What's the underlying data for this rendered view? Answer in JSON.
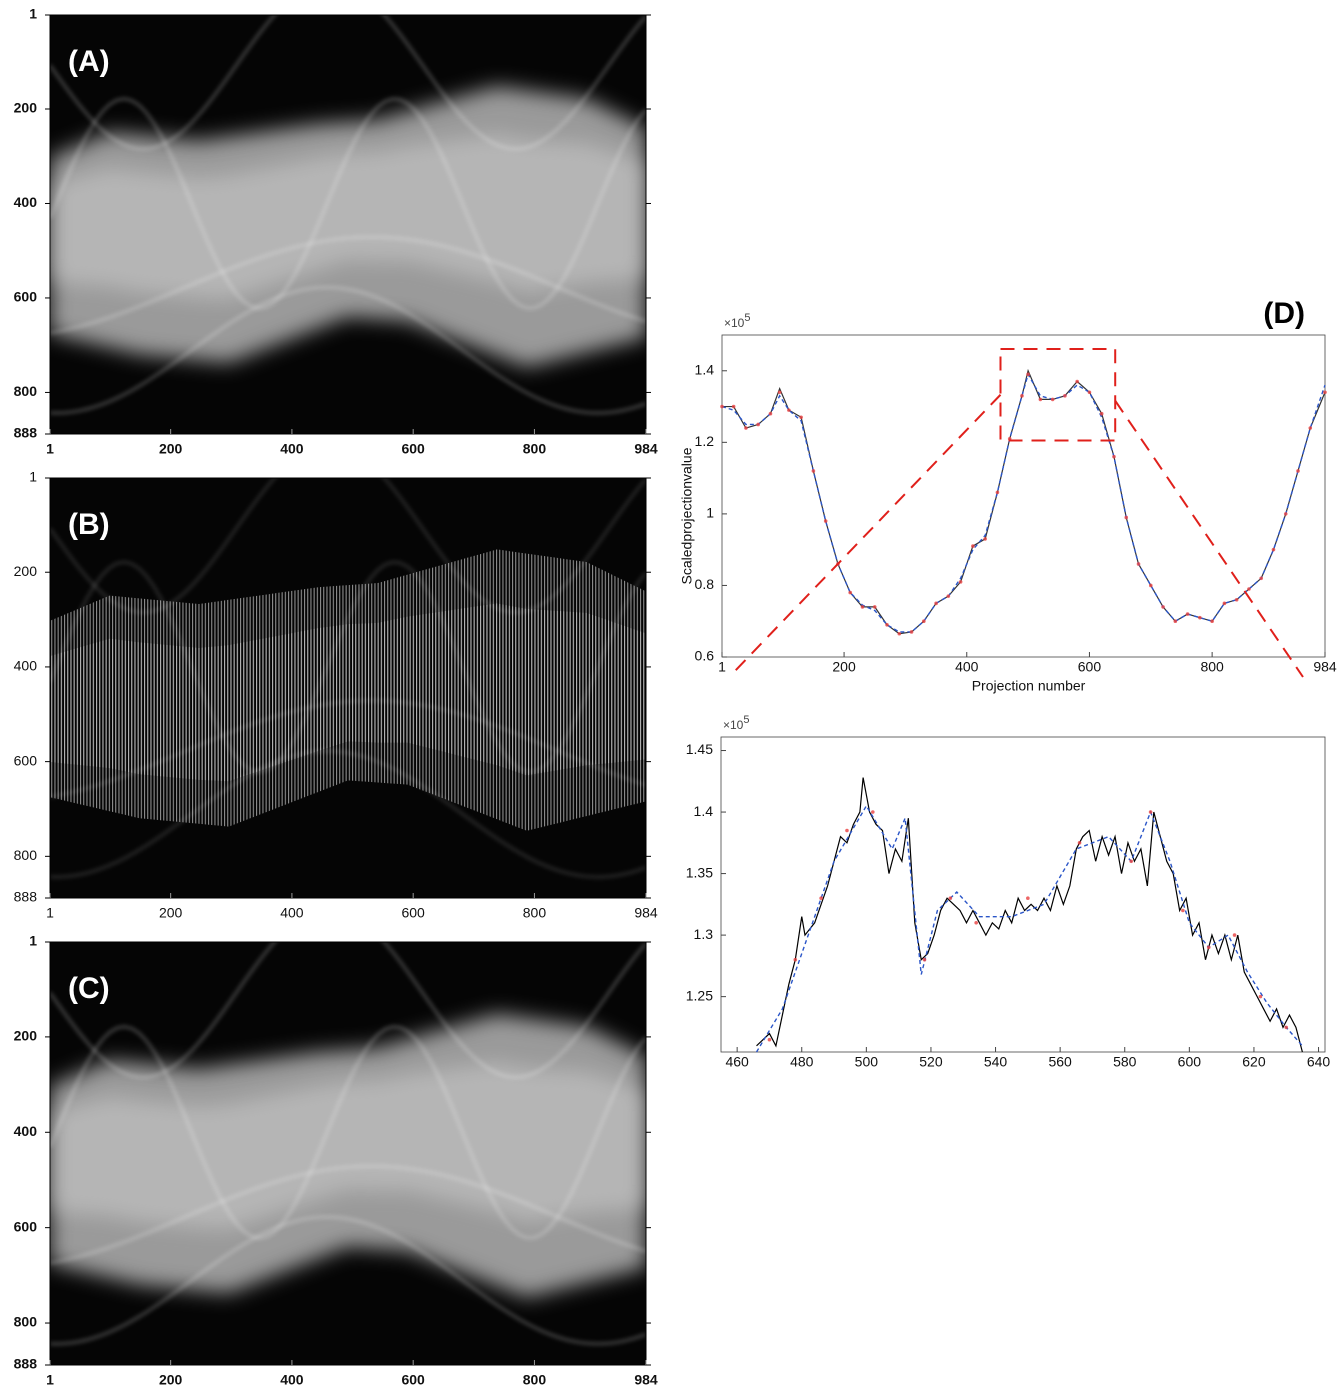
{
  "chart_data": [
    {
      "type": "image",
      "label": "(A)",
      "xlim": [
        1,
        984
      ],
      "ylim": [
        888,
        1
      ],
      "xticks": [
        1,
        200,
        400,
        600,
        800,
        984
      ],
      "yticks": [
        1,
        200,
        400,
        600,
        800,
        888
      ]
    },
    {
      "type": "image",
      "xlim": [
        1,
        984
      ],
      "ylim": [
        888,
        1
      ],
      "xticks": [
        1,
        200,
        400,
        600,
        800,
        984
      ],
      "yticks": [
        1,
        200,
        400,
        600,
        800,
        888
      ],
      "label": "(B)"
    },
    {
      "type": "image",
      "label": "(C)",
      "xlim": [
        1,
        984
      ],
      "ylim": [
        888,
        1
      ],
      "xticks": [
        1,
        200,
        400,
        600,
        800,
        984
      ],
      "yticks": [
        1,
        200,
        400,
        600,
        800,
        888
      ]
    },
    {
      "type": "line",
      "label": "(D)",
      "x_label": "Projection number",
      "y_label": "Scaledprojectionvalue",
      "y_multiplier": {
        "base": "×10",
        "exponent": "5"
      },
      "xlim": [
        1,
        984
      ],
      "ylim": [
        0.6,
        1.5
      ],
      "xticks": [
        1,
        200,
        400,
        600,
        800,
        984
      ],
      "yticks": [
        0.6,
        0.8,
        1,
        1.2,
        1.4
      ],
      "x": [
        1,
        20,
        40,
        60,
        80,
        95,
        110,
        130,
        150,
        170,
        190,
        210,
        230,
        250,
        270,
        290,
        310,
        330,
        350,
        370,
        390,
        410,
        430,
        450,
        470,
        490,
        500,
        520,
        540,
        560,
        580,
        600,
        620,
        640,
        660,
        680,
        700,
        720,
        740,
        760,
        780,
        800,
        820,
        840,
        860,
        880,
        900,
        920,
        940,
        960,
        984
      ],
      "series": [
        {
          "color": "#333333",
          "style": "solid",
          "values": [
            1.3,
            1.3,
            1.24,
            1.25,
            1.28,
            1.35,
            1.29,
            1.27,
            1.12,
            0.98,
            0.86,
            0.78,
            0.74,
            0.74,
            0.69,
            0.665,
            0.67,
            0.7,
            0.75,
            0.77,
            0.81,
            0.91,
            0.93,
            1.06,
            1.21,
            1.33,
            1.4,
            1.32,
            1.32,
            1.33,
            1.37,
            1.34,
            1.28,
            1.16,
            0.99,
            0.86,
            0.8,
            0.74,
            0.7,
            0.72,
            0.71,
            0.7,
            0.75,
            0.76,
            0.79,
            0.82,
            0.9,
            1.0,
            1.12,
            1.24,
            1.34
          ]
        },
        {
          "color": "#2a55c8",
          "style": "dashed",
          "values": [
            1.3,
            1.29,
            1.25,
            1.25,
            1.28,
            1.33,
            1.29,
            1.26,
            1.12,
            0.98,
            0.86,
            0.78,
            0.745,
            0.73,
            0.69,
            0.67,
            0.67,
            0.7,
            0.75,
            0.77,
            0.82,
            0.9,
            0.94,
            1.06,
            1.21,
            1.33,
            1.39,
            1.33,
            1.32,
            1.33,
            1.36,
            1.34,
            1.27,
            1.16,
            0.99,
            0.86,
            0.8,
            0.74,
            0.7,
            0.72,
            0.71,
            0.7,
            0.75,
            0.76,
            0.79,
            0.82,
            0.9,
            1.0,
            1.12,
            1.24,
            1.36
          ]
        },
        {
          "color": "#e84040",
          "style": "markers",
          "values": [
            1.3,
            1.3,
            1.24,
            1.25,
            1.28,
            1.34,
            1.29,
            1.27,
            1.12,
            0.98,
            0.86,
            0.78,
            0.74,
            0.74,
            0.69,
            0.665,
            0.67,
            0.7,
            0.75,
            0.77,
            0.81,
            0.91,
            0.93,
            1.06,
            1.21,
            1.33,
            1.39,
            1.32,
            1.32,
            1.33,
            1.37,
            1.34,
            1.28,
            1.16,
            0.99,
            0.86,
            0.8,
            0.74,
            0.7,
            0.72,
            0.71,
            0.7,
            0.75,
            0.76,
            0.79,
            0.82,
            0.9,
            1.0,
            1.12,
            1.24,
            1.34
          ]
        }
      ]
    },
    {
      "type": "line",
      "y_multiplier": {
        "base": "×10",
        "exponent": "5"
      },
      "xlim": [
        455,
        642
      ],
      "ylim": [
        1.205,
        1.461
      ],
      "xticks": [
        460,
        480,
        500,
        520,
        540,
        560,
        580,
        600,
        620,
        640
      ],
      "yticks": [
        1.25,
        1.3,
        1.35,
        1.4,
        1.45
      ],
      "series": [
        {
          "color": "#000000",
          "style": "solid",
          "x": [
            466,
            470,
            472,
            476,
            478,
            480,
            481,
            484,
            486,
            488,
            490,
            492,
            494,
            496,
            498,
            499,
            501,
            503,
            505,
            507,
            509,
            511,
            513,
            515,
            517,
            519,
            521,
            523,
            525,
            527,
            529,
            531,
            533,
            535,
            537,
            539,
            541,
            543,
            545,
            547,
            549,
            551,
            553,
            555,
            557,
            559,
            561,
            563,
            565,
            567,
            569,
            571,
            573,
            575,
            577,
            579,
            581,
            583,
            585,
            587,
            589,
            591,
            593,
            595,
            597,
            599,
            601,
            603,
            605,
            607,
            609,
            611,
            613,
            615,
            617,
            619,
            621,
            623,
            625,
            627,
            629,
            631,
            633,
            635
          ],
          "values": [
            1.21,
            1.22,
            1.21,
            1.26,
            1.28,
            1.315,
            1.3,
            1.31,
            1.325,
            1.34,
            1.36,
            1.38,
            1.375,
            1.39,
            1.4,
            1.428,
            1.4,
            1.39,
            1.385,
            1.35,
            1.37,
            1.36,
            1.395,
            1.31,
            1.28,
            1.285,
            1.3,
            1.32,
            1.33,
            1.325,
            1.32,
            1.31,
            1.32,
            1.31,
            1.3,
            1.31,
            1.305,
            1.32,
            1.31,
            1.33,
            1.32,
            1.325,
            1.32,
            1.33,
            1.32,
            1.34,
            1.325,
            1.34,
            1.37,
            1.38,
            1.385,
            1.36,
            1.38,
            1.365,
            1.38,
            1.35,
            1.375,
            1.36,
            1.37,
            1.34,
            1.4,
            1.38,
            1.36,
            1.35,
            1.32,
            1.33,
            1.3,
            1.31,
            1.28,
            1.3,
            1.285,
            1.3,
            1.28,
            1.3,
            1.27,
            1.26,
            1.25,
            1.24,
            1.23,
            1.24,
            1.225,
            1.235,
            1.225,
            1.205
          ]
        },
        {
          "color": "#2a55c8",
          "style": "dashed",
          "x": [
            466,
            474,
            482,
            490,
            500,
            508,
            512,
            517,
            522,
            528,
            535,
            545,
            555,
            565,
            575,
            582,
            588,
            594,
            600,
            606,
            612,
            618,
            624,
            630,
            635
          ],
          "values": [
            1.205,
            1.24,
            1.3,
            1.36,
            1.405,
            1.37,
            1.395,
            1.268,
            1.32,
            1.335,
            1.315,
            1.315,
            1.325,
            1.37,
            1.38,
            1.36,
            1.4,
            1.36,
            1.31,
            1.29,
            1.3,
            1.27,
            1.245,
            1.225,
            1.21
          ]
        },
        {
          "color": "#e84040",
          "style": "markers",
          "x": [
            470,
            478,
            486,
            494,
            502,
            518,
            526,
            534,
            550,
            566,
            582,
            588,
            598,
            606,
            614,
            622,
            630
          ],
          "values": [
            1.215,
            1.28,
            1.33,
            1.385,
            1.4,
            1.28,
            1.33,
            1.31,
            1.33,
            1.375,
            1.36,
            1.4,
            1.32,
            1.29,
            1.3,
            1.25,
            1.225
          ]
        }
      ]
    }
  ]
}
